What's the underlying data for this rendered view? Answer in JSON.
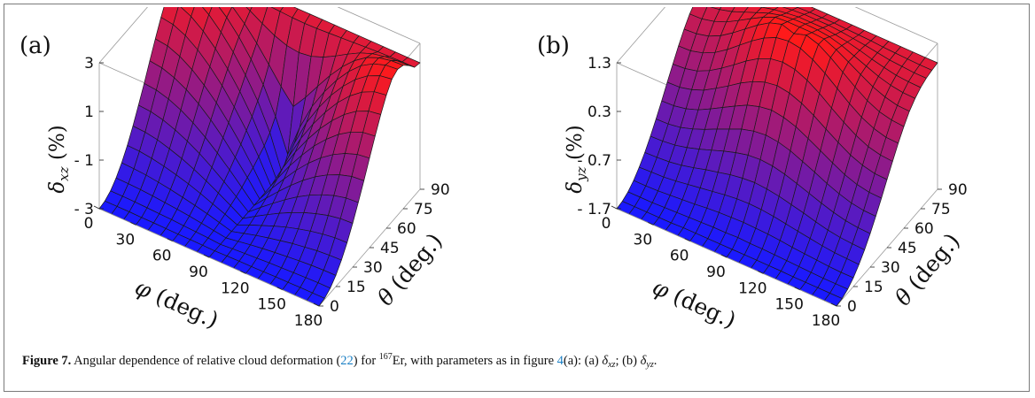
{
  "chart_data": [
    {
      "type": "surface3d",
      "panel_label": "(a)",
      "zlabel": "δ_xz (%)",
      "zlabel_symbol": "δ",
      "zlabel_sub": "xz",
      "zlabel_unit": " (%)",
      "xlabel_symbol": "φ",
      "xlabel_unit": " (deg.)",
      "ylabel_symbol": "θ",
      "ylabel_unit": " (deg.)",
      "x_ticks": [
        "0",
        "30",
        "60",
        "90",
        "120",
        "150",
        "180"
      ],
      "y_ticks": [
        "0",
        "15",
        "30",
        "45",
        "60",
        "75",
        "90"
      ],
      "z_ticks": [
        "- 3",
        "- 1",
        "1",
        "3"
      ],
      "xlim": [
        0,
        180
      ],
      "ylim": [
        0,
        90
      ],
      "zlim": [
        -3,
        3
      ],
      "grid_rows_theta": [
        0,
        5,
        10,
        15,
        20,
        25,
        30,
        35,
        40,
        45,
        50,
        55,
        60,
        65,
        70,
        75,
        80,
        85,
        90
      ],
      "grid_cols_phi": [
        0,
        10,
        20,
        30,
        40,
        50,
        60,
        70,
        80,
        90,
        100,
        110,
        120,
        130,
        140,
        150,
        160,
        170,
        180
      ],
      "z_values": [
        [
          -3,
          -3,
          -3,
          -3,
          -3,
          -3,
          -3,
          -3,
          -3,
          -3,
          -3,
          -3,
          -3,
          -3,
          -3,
          -3,
          -3,
          -3,
          -3
        ],
        [
          -2.95,
          -2.95,
          -2.95,
          -2.96,
          -2.96,
          -2.97,
          -2.98,
          -2.98,
          -2.99,
          -3,
          -2.99,
          -2.98,
          -2.98,
          -2.97,
          -2.96,
          -2.96,
          -2.95,
          -2.95,
          -2.95
        ],
        [
          -2.8,
          -2.8,
          -2.81,
          -2.83,
          -2.85,
          -2.87,
          -2.9,
          -2.93,
          -2.96,
          -3,
          -2.96,
          -2.93,
          -2.9,
          -2.87,
          -2.85,
          -2.83,
          -2.81,
          -2.8,
          -2.8
        ],
        [
          -2.54,
          -2.55,
          -2.57,
          -2.61,
          -2.66,
          -2.71,
          -2.77,
          -2.84,
          -2.92,
          -3,
          -2.92,
          -2.84,
          -2.77,
          -2.71,
          -2.66,
          -2.61,
          -2.57,
          -2.55,
          -2.54
        ],
        [
          -2.18,
          -2.2,
          -2.24,
          -2.31,
          -2.39,
          -2.49,
          -2.6,
          -2.72,
          -2.86,
          -3,
          -2.86,
          -2.72,
          -2.6,
          -2.49,
          -2.39,
          -2.31,
          -2.24,
          -2.2,
          -2.18
        ],
        [
          -1.73,
          -1.75,
          -1.82,
          -1.92,
          -2.05,
          -2.2,
          -2.38,
          -2.58,
          -2.78,
          -3,
          -2.78,
          -2.58,
          -2.38,
          -2.2,
          -2.05,
          -1.92,
          -1.82,
          -1.75,
          -1.73
        ],
        [
          -1.2,
          -1.23,
          -1.32,
          -1.47,
          -1.65,
          -1.87,
          -2.12,
          -2.4,
          -2.69,
          -3,
          -2.69,
          -2.4,
          -2.12,
          -1.87,
          -1.65,
          -1.47,
          -1.32,
          -1.23,
          -1.2
        ],
        [
          -0.61,
          -0.65,
          -0.77,
          -0.96,
          -1.2,
          -1.49,
          -1.83,
          -2.2,
          -2.59,
          -3,
          -2.59,
          -2.2,
          -1.83,
          -1.49,
          -1.2,
          -0.96,
          -0.77,
          -0.65,
          -0.61
        ],
        [
          0.02,
          -0.03,
          -0.18,
          -0.41,
          -0.71,
          -1.08,
          -1.51,
          -1.98,
          -2.48,
          -3,
          -2.48,
          -1.98,
          -1.51,
          -1.08,
          -0.71,
          -0.41,
          -0.18,
          -0.03,
          0.02
        ],
        [
          0.68,
          0.61,
          0.43,
          0.16,
          -0.2,
          -0.64,
          -1.15,
          -1.73,
          -2.34,
          -3,
          -2.34,
          -1.73,
          -1.15,
          -0.64,
          -0.2,
          0.16,
          0.43,
          0.61,
          0.68
        ],
        [
          1.32,
          1.25,
          1.04,
          0.72,
          0.3,
          -0.2,
          -0.8,
          -1.46,
          -2.2,
          -3,
          -2.2,
          -1.46,
          -0.8,
          -0.2,
          0.3,
          0.72,
          1.04,
          1.25,
          1.32
        ],
        [
          1.94,
          1.86,
          1.63,
          1.27,
          0.8,
          0.24,
          -0.42,
          -1.16,
          -2.02,
          -3,
          -2.02,
          -1.16,
          -0.42,
          0.24,
          0.8,
          1.27,
          1.63,
          1.86,
          1.94
        ],
        [
          2.47,
          2.39,
          2.15,
          1.77,
          1.27,
          0.66,
          -0.05,
          -0.86,
          -1.84,
          -3,
          -1.84,
          -0.86,
          -0.05,
          0.66,
          1.27,
          1.77,
          2.15,
          2.39,
          2.47
        ],
        [
          2.86,
          2.78,
          2.55,
          2.18,
          1.68,
          1.08,
          0.36,
          -0.48,
          -1.56,
          -3,
          -1.56,
          -0.48,
          0.36,
          1.08,
          1.68,
          2.18,
          2.55,
          2.78,
          2.86
        ],
        [
          3,
          2.95,
          2.78,
          2.48,
          2.02,
          1.44,
          0.74,
          -0.08,
          -1.16,
          -2.5,
          -1.16,
          -0.08,
          0.74,
          1.44,
          2.02,
          2.48,
          2.78,
          2.95,
          3
        ],
        [
          2.9,
          2.87,
          2.76,
          2.55,
          2.2,
          1.72,
          1.14,
          0.48,
          -0.2,
          -0.8,
          -0.2,
          0.48,
          1.14,
          1.72,
          2.2,
          2.55,
          2.76,
          2.87,
          2.9
        ],
        [
          2.62,
          2.6,
          2.55,
          2.44,
          2.25,
          1.98,
          1.68,
          1.41,
          1.22,
          1.15,
          1.22,
          1.41,
          1.68,
          1.98,
          2.25,
          2.44,
          2.55,
          2.6,
          2.62
        ],
        [
          2.28,
          2.28,
          2.27,
          2.25,
          2.22,
          2.19,
          2.16,
          2.13,
          2.1,
          2.09,
          2.1,
          2.13,
          2.16,
          2.19,
          2.22,
          2.25,
          2.27,
          2.28,
          2.28
        ],
        [
          2.2,
          2.2,
          2.2,
          2.2,
          2.2,
          2.2,
          2.2,
          2.2,
          2.2,
          2.2,
          2.2,
          2.2,
          2.2,
          2.2,
          2.2,
          2.2,
          2.2,
          2.2,
          2.2
        ]
      ],
      "color_low": "#1a1aff",
      "color_high": "#ff1a1a"
    },
    {
      "type": "surface3d",
      "panel_label": "(b)",
      "zlabel": "δ_yz (%)",
      "zlabel_symbol": "δ",
      "zlabel_sub": "yz",
      "zlabel_unit": " (%)",
      "xlabel_symbol": "φ",
      "xlabel_unit": " (deg.)",
      "ylabel_symbol": "θ",
      "ylabel_unit": " (deg.)",
      "x_ticks": [
        "0",
        "30",
        "60",
        "90",
        "120",
        "150",
        "180"
      ],
      "y_ticks": [
        "0",
        "15",
        "30",
        "45",
        "60",
        "75",
        "90"
      ],
      "z_ticks": [
        "- 1.7",
        "- 0.7",
        "0.3",
        "1.3"
      ],
      "xlim": [
        0,
        180
      ],
      "ylim": [
        0,
        90
      ],
      "zlim": [
        -1.7,
        1.3
      ],
      "grid_rows_theta": [
        0,
        5,
        10,
        15,
        20,
        25,
        30,
        35,
        40,
        45,
        50,
        55,
        60,
        65,
        70,
        75,
        80,
        85,
        90
      ],
      "grid_cols_phi": [
        0,
        10,
        20,
        30,
        40,
        50,
        60,
        70,
        80,
        90,
        100,
        110,
        120,
        130,
        140,
        150,
        160,
        170,
        180
      ],
      "z_values": [
        [
          -1.7,
          -1.7,
          -1.7,
          -1.7,
          -1.7,
          -1.7,
          -1.7,
          -1.7,
          -1.7,
          -1.7,
          -1.7,
          -1.7,
          -1.7,
          -1.7,
          -1.7,
          -1.7,
          -1.7,
          -1.7,
          -1.7
        ],
        [
          -1.68,
          -1.68,
          -1.68,
          -1.68,
          -1.68,
          -1.67,
          -1.67,
          -1.67,
          -1.67,
          -1.67,
          -1.67,
          -1.67,
          -1.67,
          -1.67,
          -1.68,
          -1.68,
          -1.68,
          -1.68,
          -1.68
        ],
        [
          -1.62,
          -1.62,
          -1.62,
          -1.61,
          -1.6,
          -1.59,
          -1.58,
          -1.57,
          -1.57,
          -1.56,
          -1.57,
          -1.57,
          -1.58,
          -1.59,
          -1.6,
          -1.61,
          -1.62,
          -1.62,
          -1.62
        ],
        [
          -1.52,
          -1.52,
          -1.51,
          -1.49,
          -1.47,
          -1.45,
          -1.42,
          -1.4,
          -1.39,
          -1.38,
          -1.39,
          -1.4,
          -1.42,
          -1.45,
          -1.47,
          -1.49,
          -1.51,
          -1.52,
          -1.52
        ],
        [
          -1.38,
          -1.37,
          -1.36,
          -1.33,
          -1.29,
          -1.25,
          -1.21,
          -1.17,
          -1.14,
          -1.13,
          -1.14,
          -1.17,
          -1.21,
          -1.25,
          -1.29,
          -1.33,
          -1.36,
          -1.37,
          -1.38
        ],
        [
          -1.21,
          -1.2,
          -1.18,
          -1.14,
          -1.08,
          -1.01,
          -0.95,
          -0.89,
          -0.85,
          -0.83,
          -0.85,
          -0.89,
          -0.95,
          -1.01,
          -1.08,
          -1.14,
          -1.18,
          -1.2,
          -1.21
        ],
        [
          -1.01,
          -1,
          -0.97,
          -0.91,
          -0.83,
          -0.74,
          -0.65,
          -0.57,
          -0.51,
          -0.49,
          -0.51,
          -0.57,
          -0.65,
          -0.74,
          -0.83,
          -0.91,
          -0.97,
          -1,
          -1.01
        ],
        [
          -0.79,
          -0.78,
          -0.74,
          -0.66,
          -0.56,
          -0.44,
          -0.33,
          -0.22,
          -0.15,
          -0.12,
          -0.15,
          -0.22,
          -0.33,
          -0.44,
          -0.56,
          -0.66,
          -0.74,
          -0.78,
          -0.79
        ],
        [
          -0.55,
          -0.54,
          -0.49,
          -0.4,
          -0.27,
          -0.13,
          0.01,
          0.14,
          0.22,
          0.26,
          0.22,
          0.14,
          0.01,
          -0.13,
          -0.27,
          -0.4,
          -0.49,
          -0.54,
          -0.55
        ],
        [
          -0.3,
          -0.29,
          -0.23,
          -0.13,
          0.02,
          0.18,
          0.35,
          0.49,
          0.59,
          0.63,
          0.59,
          0.49,
          0.35,
          0.18,
          0.02,
          -0.13,
          -0.23,
          -0.29,
          -0.3
        ],
        [
          -0.06,
          -0.04,
          0.02,
          0.14,
          0.3,
          0.48,
          0.67,
          0.83,
          0.94,
          0.98,
          0.94,
          0.83,
          0.67,
          0.48,
          0.3,
          0.14,
          0.02,
          -0.04,
          -0.06
        ],
        [
          0.18,
          0.19,
          0.26,
          0.38,
          0.55,
          0.75,
          0.95,
          1.12,
          1.24,
          1.28,
          1.24,
          1.12,
          0.95,
          0.75,
          0.55,
          0.38,
          0.26,
          0.19,
          0.18
        ],
        [
          0.39,
          0.41,
          0.47,
          0.59,
          0.76,
          0.95,
          1.14,
          1.3,
          1.38,
          1.3,
          1.38,
          1.3,
          1.14,
          0.95,
          0.76,
          0.59,
          0.47,
          0.41,
          0.39
        ],
        [
          0.57,
          0.58,
          0.64,
          0.74,
          0.88,
          1.03,
          1.17,
          1.28,
          1.3,
          1.3,
          1.3,
          1.28,
          1.17,
          1.03,
          0.88,
          0.74,
          0.64,
          0.58,
          0.57
        ],
        [
          0.7,
          0.71,
          0.75,
          0.82,
          0.92,
          1.02,
          1.12,
          1.19,
          1.22,
          1.23,
          1.22,
          1.19,
          1.12,
          1.02,
          0.92,
          0.82,
          0.75,
          0.71,
          0.7
        ],
        [
          0.79,
          0.8,
          0.82,
          0.87,
          0.93,
          1,
          1.06,
          1.1,
          1.13,
          1.13,
          1.13,
          1.1,
          1.06,
          1,
          0.93,
          0.87,
          0.82,
          0.8,
          0.79
        ],
        [
          0.85,
          0.85,
          0.87,
          0.89,
          0.93,
          0.97,
          1,
          1.03,
          1.05,
          1.05,
          1.05,
          1.03,
          1,
          0.97,
          0.93,
          0.89,
          0.87,
          0.85,
          0.85
        ],
        [
          0.88,
          0.88,
          0.89,
          0.9,
          0.91,
          0.93,
          0.94,
          0.95,
          0.96,
          0.96,
          0.96,
          0.95,
          0.94,
          0.93,
          0.91,
          0.9,
          0.89,
          0.88,
          0.88
        ],
        [
          0.9,
          0.9,
          0.9,
          0.9,
          0.9,
          0.9,
          0.9,
          0.9,
          0.9,
          0.9,
          0.9,
          0.9,
          0.9,
          0.9,
          0.9,
          0.9,
          0.9,
          0.9,
          0.9
        ]
      ],
      "color_low": "#1a1aff",
      "color_high": "#ff1a1a"
    }
  ],
  "caption": {
    "label": "Figure 7.",
    "text1": " Angular dependence of relative cloud deformation (",
    "eq_ref": "22",
    "text2": ") for ",
    "isotope_mass": "167",
    "isotope_symbol": "Er",
    "text3": ", with parameters as in figure ",
    "fig_ref": "4",
    "text4": "(a): (a) ",
    "sym_a": "δ",
    "sub_a": "xz",
    "text5": "; (b) ",
    "sym_b": "δ",
    "sub_b": "yz",
    "text6": "."
  }
}
